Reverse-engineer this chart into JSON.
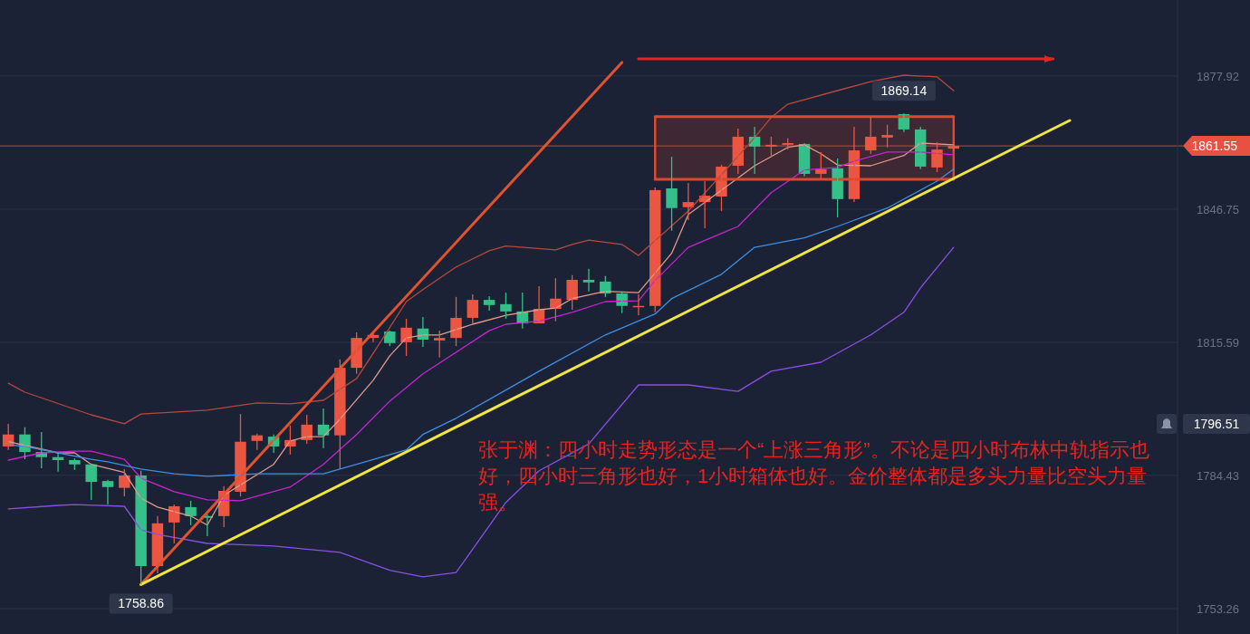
{
  "chart_data": {
    "type": "candlestick",
    "categories": [
      null,
      null,
      null,
      null,
      null,
      null,
      null,
      null,
      null,
      null,
      null,
      null,
      null,
      null,
      null,
      null,
      null,
      null,
      null,
      null,
      null,
      null,
      null,
      null,
      null,
      null,
      null,
      null,
      null,
      null,
      null,
      null,
      null,
      null,
      null,
      null,
      null,
      null,
      null,
      null,
      null,
      null,
      null,
      null,
      null,
      null,
      null,
      null,
      null,
      null,
      null,
      null,
      null,
      null,
      null,
      null,
      null,
      null,
      null,
      null,
      null,
      null,
      null,
      null,
      null,
      null,
      null,
      null,
      null,
      null,
      null
    ],
    "ohlc": [
      [
        1791.2,
        1796.5,
        1790.4,
        1794.0
      ],
      [
        1794.0,
        1795.7,
        1788.2,
        1789.9
      ],
      [
        1789.9,
        1794.6,
        1786.1,
        1788.7
      ],
      [
        1788.7,
        1789.7,
        1785.3,
        1788.0
      ],
      [
        1788.0,
        1788.4,
        1785.7,
        1787.0
      ],
      [
        1787.0,
        1787.2,
        1778.7,
        1782.9
      ],
      [
        1783.1,
        1783.4,
        1777.6,
        1781.7
      ],
      [
        1781.5,
        1785.9,
        1779.5,
        1784.4
      ],
      [
        1784.4,
        1785.5,
        1758.86,
        1763.2
      ],
      [
        1763.2,
        1774.9,
        1761.5,
        1773.2
      ],
      [
        1773.4,
        1777.6,
        1768.5,
        1777.2
      ],
      [
        1777.0,
        1778.5,
        1772.8,
        1774.9
      ],
      [
        1774.9,
        1775.3,
        1770.2,
        1774.5
      ],
      [
        1774.9,
        1781.9,
        1772.3,
        1780.8
      ],
      [
        1780.6,
        1798.8,
        1779.5,
        1792.3
      ],
      [
        1792.5,
        1794.2,
        1790.4,
        1793.8
      ],
      [
        1793.5,
        1794.0,
        1789.7,
        1791.2
      ],
      [
        1791.2,
        1796.1,
        1789.3,
        1792.7
      ],
      [
        1792.7,
        1798.6,
        1791.8,
        1796.3
      ],
      [
        1796.3,
        1800.1,
        1790.8,
        1793.8
      ],
      [
        1793.8,
        1811.6,
        1785.9,
        1809.6
      ],
      [
        1809.6,
        1817.9,
        1808.2,
        1816.6
      ],
      [
        1816.6,
        1817.7,
        1815.6,
        1817.3
      ],
      [
        1818.1,
        1818.3,
        1814.7,
        1815.4
      ],
      [
        1815.6,
        1821.1,
        1812.4,
        1819.0
      ],
      [
        1818.8,
        1821.5,
        1814.5,
        1816.2
      ],
      [
        1816.0,
        1818.3,
        1812.0,
        1816.6
      ],
      [
        1816.6,
        1826.2,
        1814.7,
        1821.3
      ],
      [
        1821.3,
        1826.8,
        1819.8,
        1825.5
      ],
      [
        1825.5,
        1826.4,
        1823.0,
        1824.3
      ],
      [
        1824.5,
        1827.2,
        1821.1,
        1822.8
      ],
      [
        1822.8,
        1827.2,
        1818.8,
        1820.0
      ],
      [
        1820.0,
        1828.7,
        1820.0,
        1823.4
      ],
      [
        1823.4,
        1830.6,
        1820.5,
        1825.8
      ],
      [
        1825.5,
        1831.3,
        1823.2,
        1830.2
      ],
      [
        1830.2,
        1832.8,
        1827.5,
        1829.6
      ],
      [
        1829.8,
        1831.1,
        1826.2,
        1827.0
      ],
      [
        1827.0,
        1827.5,
        1822.4,
        1824.1
      ],
      [
        1823.9,
        1826.8,
        1821.9,
        1824.1
      ],
      [
        1824.1,
        1851.8,
        1822.6,
        1851.2
      ],
      [
        1851.6,
        1859.0,
        1841.7,
        1847.0
      ],
      [
        1847.2,
        1852.9,
        1844.2,
        1848.4
      ],
      [
        1848.4,
        1853.3,
        1842.3,
        1849.9
      ],
      [
        1849.7,
        1857.1,
        1846.3,
        1856.7
      ],
      [
        1856.9,
        1865.6,
        1855.0,
        1863.7
      ],
      [
        1863.7,
        1866.0,
        1855.0,
        1861.4
      ],
      [
        1861.4,
        1863.7,
        1859.0,
        1861.8
      ],
      [
        1861.8,
        1863.3,
        1860.7,
        1862.2
      ],
      [
        1862.0,
        1862.2,
        1854.4,
        1855.0
      ],
      [
        1855.0,
        1860.1,
        1853.7,
        1856.1
      ],
      [
        1856.3,
        1858.6,
        1844.8,
        1849.1
      ],
      [
        1849.1,
        1866.0,
        1848.4,
        1860.5
      ],
      [
        1860.5,
        1868.4,
        1859.7,
        1863.7
      ],
      [
        1863.5,
        1866.5,
        1861.2,
        1864.1
      ],
      [
        1869.0,
        1869.14,
        1864.8,
        1865.4
      ],
      [
        1865.4,
        1866.0,
        1856.1,
        1856.7
      ],
      [
        1856.5,
        1862.4,
        1855.4,
        1860.7
      ],
      [
        1860.9,
        1862.2,
        1860.5,
        1861.55
      ],
      null,
      null,
      null,
      null,
      null,
      null,
      null,
      null,
      null,
      null,
      null,
      null,
      null
    ],
    "colors": [
      "#eb5643",
      "#35c08a",
      "#35c08a",
      "#35c08a",
      "#35c08a",
      "#35c08a",
      "#35c08a",
      "#eb5643",
      "#35c08a",
      "#eb5643",
      "#eb5643",
      "#35c08a",
      "#35c08a",
      "#eb5643",
      "#eb5643",
      "#eb5643",
      "#35c08a",
      "#eb5643",
      "#eb5643",
      "#35c08a",
      "#eb5643",
      "#eb5643",
      "#eb5643",
      "#35c08a",
      "#eb5643",
      "#35c08a",
      "#eb5643",
      "#eb5643",
      "#eb5643",
      "#35c08a",
      "#35c08a",
      "#35c08a",
      "#eb5643",
      "#eb5643",
      "#eb5643",
      "#35c08a",
      "#35c08a",
      "#35c08a",
      "#eb5643",
      "#eb5643",
      "#35c08a",
      "#eb5643",
      "#eb5643",
      "#eb5643",
      "#eb5643",
      "#35c08a",
      "#eb5643",
      "#eb5643",
      "#35c08a",
      "#eb5643",
      "#35c08a",
      "#eb5643",
      "#eb5643",
      "#eb5643",
      "#35c08a",
      "#35c08a",
      "#eb5643",
      "#eb5643",
      null,
      null,
      null,
      null,
      null,
      null,
      null,
      null,
      null,
      null,
      null,
      null,
      null
    ],
    "series": [
      {
        "type": "line",
        "color": "#b8483c",
        "values": [
          1806.0,
          1803.9,
          null,
          null,
          null,
          1798.6,
          null,
          1796.5,
          1798.8,
          null,
          null,
          null,
          1799.7,
          null,
          null,
          1801.4,
          null,
          1801.2,
          null,
          1802.0,
          null,
          1807.1,
          1813.0,
          null,
          1825.1,
          1827.9,
          null,
          1833.2,
          null,
          1837.0,
          1838.1,
          null,
          null,
          1837.2,
          1838.5,
          1839.5,
          null,
          1838.5,
          1835.9,
          null,
          null,
          1846.3,
          null,
          1854.8,
          null,
          1863.5,
          1868.2,
          1871.3,
          null,
          null,
          1874.5,
          null,
          1876.6,
          null,
          1878.1,
          null,
          1877.7,
          1874.5,
          null,
          null,
          null,
          null,
          null,
          null,
          null,
          null,
          null,
          null,
          null,
          null,
          null
        ]
      },
      {
        "type": "line",
        "color": "#e39a8a",
        "values": [
          1792.3,
          null,
          null,
          1789.7,
          1789.7,
          1787.0,
          null,
          1785.1,
          1779.1,
          1777.0,
          null,
          1774.9,
          1772.8,
          1779.8,
          null,
          null,
          1787.0,
          1792.5,
          1793.5,
          1793.5,
          1797.6,
          null,
          1806.7,
          1812.4,
          1816.6,
          1817.3,
          1817.3,
          null,
          1819.8,
          null,
          1821.9,
          null,
          1823.2,
          1823.6,
          1825.8,
          null,
          1827.5,
          null,
          1827.2,
          null,
          1836.4,
          1845.5,
          null,
          1851.2,
          null,
          1856.9,
          null,
          1861.2,
          1861.8,
          1859.7,
          1857.1,
          null,
          1856.9,
          null,
          1859.3,
          1862.2,
          null,
          1861.8,
          null,
          null,
          null,
          null,
          null,
          null,
          null,
          null,
          null,
          null,
          null,
          null,
          null
        ]
      },
      {
        "type": "line",
        "color": "#c724d0",
        "values": [
          1788.0,
          null,
          1789.7,
          null,
          1790.1,
          1790.1,
          null,
          1788.2,
          1783.8,
          null,
          1780.6,
          null,
          1778.7,
          null,
          1778.5,
          null,
          null,
          1781.7,
          null,
          1787.0,
          null,
          1794.0,
          null,
          1801.8,
          null,
          1808.2,
          null,
          null,
          null,
          1818.3,
          1819.8,
          null,
          1820.5,
          null,
          1822.6,
          null,
          1825.1,
          null,
          1825.3,
          1830.0,
          null,
          1837.8,
          null,
          null,
          1842.7,
          null,
          1850.6,
          null,
          1855.9,
          null,
          1856.5,
          1858.0,
          null,
          1860.1,
          null,
          1860.1,
          null,
          1859.5,
          null,
          null,
          null,
          null,
          null,
          null,
          null,
          null,
          null,
          null,
          null,
          null,
          null
        ]
      },
      {
        "type": "line",
        "color": "#3d8fe3",
        "values": [
          1791.6,
          1791.2,
          null,
          1789.7,
          null,
          1788.2,
          1787.6,
          null,
          1785.9,
          null,
          1784.8,
          null,
          1784.2,
          null,
          null,
          1784.8,
          null,
          null,
          null,
          1784.8,
          null,
          1787.0,
          null,
          null,
          1790.4,
          1794.0,
          null,
          1797.8,
          null,
          null,
          null,
          null,
          1808.8,
          null,
          null,
          null,
          1817.3,
          null,
          null,
          1822.2,
          1825.8,
          null,
          null,
          1831.5,
          null,
          1837.8,
          null,
          null,
          1840.0,
          null,
          1842.7,
          null,
          null,
          1847.0,
          1849.1,
          null,
          1853.3,
          1856.1,
          null,
          null,
          null,
          null,
          null,
          null,
          null,
          null,
          null,
          null,
          null,
          null,
          null
        ]
      },
      {
        "type": "line",
        "color": "#8a4fe6",
        "values": [
          1776.6,
          null,
          null,
          1777.4,
          1777.6,
          null,
          null,
          1777.2,
          1771.7,
          1770.6,
          null,
          null,
          1768.5,
          null,
          null,
          null,
          1767.9,
          null,
          null,
          null,
          1766.4,
          null,
          null,
          1762.2,
          null,
          1760.7,
          null,
          1761.7,
          null,
          null,
          1778.1,
          null,
          1785.5,
          null,
          null,
          1791.8,
          null,
          null,
          1805.6,
          null,
          null,
          1805.6,
          null,
          null,
          1804.1,
          null,
          1808.8,
          null,
          null,
          1810.9,
          null,
          null,
          1817.3,
          null,
          1822.6,
          1828.3,
          null,
          1837.8,
          null,
          null,
          null,
          null,
          null,
          null,
          null,
          null,
          null,
          null,
          null,
          null,
          null
        ]
      },
      {
        "type": "line",
        "color": "#e0472f",
        "values": [
          null,
          null,
          null,
          null,
          null,
          null,
          null,
          null,
          null,
          null,
          null,
          null,
          null,
          null,
          null,
          null,
          null,
          null,
          null,
          null,
          null,
          null,
          null,
          null,
          null,
          null,
          null,
          null,
          null,
          null,
          null,
          null,
          null,
          null,
          null,
          null,
          null,
          null,
          null,
          1868.4,
          null,
          null,
          null,
          null,
          null,
          null,
          null,
          null,
          null,
          null,
          null,
          null,
          null,
          null,
          null,
          null,
          null,
          1868.4,
          null,
          null,
          null,
          null,
          null,
          null,
          null,
          null,
          null,
          null,
          null,
          null,
          null
        ]
      },
      {
        "type": "line",
        "color": "#e0472f",
        "values": [
          null,
          null,
          null,
          null,
          null,
          null,
          null,
          null,
          null,
          null,
          null,
          null,
          null,
          null,
          null,
          null,
          null,
          null,
          null,
          null,
          null,
          null,
          null,
          null,
          null,
          null,
          null,
          null,
          null,
          null,
          null,
          null,
          null,
          null,
          null,
          null,
          null,
          null,
          null,
          1853.7,
          null,
          null,
          null,
          null,
          null,
          null,
          null,
          null,
          null,
          null,
          null,
          null,
          null,
          null,
          null,
          null,
          null,
          1853.7,
          null,
          null,
          null,
          null,
          null,
          null,
          null,
          null,
          null,
          null,
          null,
          null,
          null
        ]
      },
      {
        "type": "line",
        "color": "#e0532f",
        "values": [
          null,
          null,
          null,
          null,
          null,
          null,
          null,
          null,
          1758.9,
          null,
          null,
          null,
          null,
          null,
          null,
          null,
          null,
          null,
          null,
          null,
          null,
          null,
          null,
          null,
          null,
          null,
          null,
          null,
          null,
          null,
          null,
          null,
          null,
          null,
          null,
          null,
          null,
          1881.1,
          null,
          null,
          null,
          null,
          null,
          null,
          null,
          null,
          null,
          null,
          null,
          null,
          null,
          null,
          null,
          null,
          null,
          null,
          null,
          null,
          null,
          null,
          null,
          null,
          null,
          null,
          null,
          null,
          null,
          null,
          null,
          null,
          null
        ]
      },
      {
        "type": "line",
        "color": "#f3e53b",
        "values": [
          null,
          null,
          null,
          null,
          null,
          null,
          null,
          null,
          1758.9,
          null,
          null,
          null,
          null,
          null,
          null,
          null,
          null,
          null,
          null,
          null,
          null,
          null,
          null,
          null,
          null,
          null,
          null,
          null,
          null,
          null,
          null,
          null,
          null,
          null,
          null,
          null,
          null,
          null,
          null,
          null,
          null,
          null,
          null,
          null,
          null,
          null,
          null,
          null,
          null,
          null,
          null,
          null,
          null,
          null,
          null,
          null,
          null,
          null,
          null,
          null,
          null,
          null,
          null,
          null,
          1867.5,
          null,
          null,
          null,
          null,
          null,
          null
        ]
      },
      {
        "type": "line",
        "color": "#e8231d",
        "values": [
          null,
          null,
          null,
          null,
          null,
          null,
          null,
          null,
          null,
          null,
          null,
          null,
          null,
          null,
          null,
          null,
          null,
          null,
          null,
          null,
          null,
          null,
          null,
          null,
          null,
          null,
          null,
          null,
          null,
          null,
          null,
          null,
          null,
          null,
          null,
          null,
          null,
          null,
          1881.9,
          null,
          null,
          null,
          null,
          null,
          null,
          null,
          null,
          null,
          null,
          null,
          null,
          null,
          null,
          null,
          null,
          null,
          null,
          null,
          null,
          null,
          null,
          null,
          null,
          1881.9,
          null,
          null,
          null,
          null,
          null,
          null,
          null
        ]
      }
    ],
    "ylim": [
      1747.3,
      1895.7
    ],
    "yticks": [
      1877.92,
      1846.75,
      1815.59,
      1784.43,
      1753.26
    ],
    "tick_labels": "y",
    "grid": "y",
    "ref_lines": [
      {
        "axis": "y",
        "value": 1861.55,
        "label": "1861.55",
        "color": "#e8513f"
      }
    ],
    "annotations": [
      "张于渊：四小时走势形态是一个“上涨三角形”。不论是四小时布林中轨指示也好，四小时三角形也好，1小时箱体也好。金价整体都是多头力量比空头力量强。",
      {
        "text": "1869.14",
        "y": 1869.14
      },
      {
        "text": "1758.86",
        "y": 1758.86
      },
      "1796.51"
    ]
  }
}
